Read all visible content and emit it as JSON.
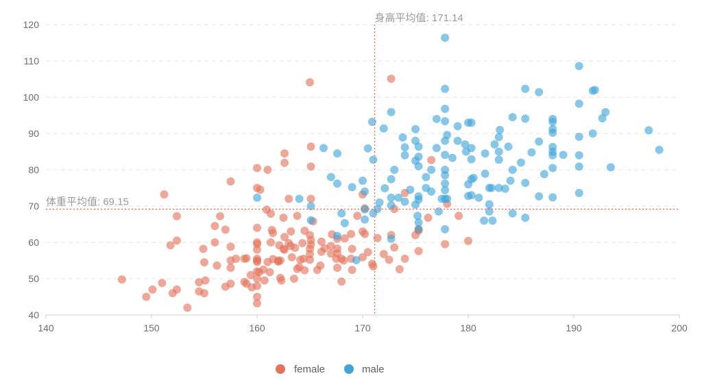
{
  "chart_data": {
    "type": "scatter",
    "xlim": [
      140,
      200
    ],
    "ylim": [
      40,
      120
    ],
    "x_ticks": [
      140,
      150,
      160,
      170,
      180,
      190,
      200
    ],
    "y_ticks": [
      40,
      50,
      60,
      70,
      80,
      90,
      100,
      110,
      120
    ],
    "grid": true,
    "legend_position": "bottom-center",
    "mark_lines": [
      {
        "axis": "x",
        "value": 171.14,
        "label": "身高平均值: 171.14"
      },
      {
        "axis": "y",
        "value": 69.15,
        "label": "体重平均值: 69.15"
      }
    ],
    "series": [
      {
        "name": "female",
        "color": "#e3735a",
        "points": [
          [
            147.2,
            49.8
          ],
          [
            149.5,
            45.0
          ],
          [
            150.1,
            47.0
          ],
          [
            151.0,
            48.8
          ],
          [
            151.2,
            73.2
          ],
          [
            151.8,
            59.2
          ],
          [
            152.0,
            46.0
          ],
          [
            152.4,
            60.5
          ],
          [
            152.4,
            67.2
          ],
          [
            152.4,
            47.0
          ],
          [
            153.4,
            42.0
          ],
          [
            154.5,
            46.5
          ],
          [
            154.5,
            49.0
          ],
          [
            154.9,
            58.2
          ],
          [
            155.0,
            46.0
          ],
          [
            155.0,
            54.5
          ],
          [
            155.1,
            49.5
          ],
          [
            156.0,
            60.0
          ],
          [
            156.0,
            64.5
          ],
          [
            156.2,
            53.6
          ],
          [
            156.5,
            67.2
          ],
          [
            157.0,
            47.8
          ],
          [
            157.0,
            63.5
          ],
          [
            157.5,
            55.0
          ],
          [
            157.5,
            76.8
          ],
          [
            157.5,
            48.6
          ],
          [
            157.5,
            53.0
          ],
          [
            157.5,
            58.8
          ],
          [
            158.0,
            55.5
          ],
          [
            158.8,
            49.1
          ],
          [
            158.8,
            55.5
          ],
          [
            159.0,
            48.6
          ],
          [
            159.0,
            55.6
          ],
          [
            159.4,
            51.0
          ],
          [
            159.5,
            47.6
          ],
          [
            160.0,
            55.0
          ],
          [
            160.0,
            50.0
          ],
          [
            160.0,
            43.2
          ],
          [
            160.0,
            45.0
          ],
          [
            160.0,
            55.5
          ],
          [
            160.0,
            59.5
          ],
          [
            160.0,
            64.0
          ],
          [
            160.0,
            75.0
          ],
          [
            160.0,
            80.5
          ],
          [
            160.0,
            52.0
          ],
          [
            160.0,
            58.0
          ],
          [
            160.0,
            48.0
          ],
          [
            160.0,
            60.0
          ],
          [
            160.0,
            54.6
          ],
          [
            160.2,
            51.8
          ],
          [
            160.3,
            74.5
          ],
          [
            160.6,
            52.5
          ],
          [
            160.7,
            49.5
          ],
          [
            160.9,
            69.0
          ],
          [
            161.0,
            54.6
          ],
          [
            161.0,
            80.0
          ],
          [
            161.2,
            51.8
          ],
          [
            161.3,
            67.9
          ],
          [
            161.3,
            60.0
          ],
          [
            161.4,
            63.4
          ],
          [
            161.5,
            62.6
          ],
          [
            161.5,
            55.4
          ],
          [
            162.0,
            54.7
          ],
          [
            162.0,
            55.0
          ],
          [
            162.1,
            59.2
          ],
          [
            162.2,
            50.2
          ],
          [
            162.2,
            55.0
          ],
          [
            162.3,
            49.5
          ],
          [
            162.5,
            58.2
          ],
          [
            162.6,
            81.9
          ],
          [
            162.6,
            84.5
          ],
          [
            162.6,
            61.5
          ],
          [
            162.6,
            58.0
          ],
          [
            163.0,
            59.8
          ],
          [
            163.0,
            72.0
          ],
          [
            163.2,
            59.0
          ],
          [
            163.3,
            55.9
          ],
          [
            163.5,
            50.0
          ],
          [
            163.6,
            58.5
          ],
          [
            163.8,
            52.7
          ],
          [
            163.8,
            67.3
          ],
          [
            164.0,
            53.2
          ],
          [
            164.1,
            55.2
          ],
          [
            164.3,
            59.8
          ],
          [
            164.4,
            55.5
          ],
          [
            164.5,
            63.2
          ],
          [
            164.5,
            52.3
          ],
          [
            165.0,
            55.2
          ],
          [
            165.0,
            58.2
          ],
          [
            165.0,
            62.0
          ],
          [
            165.0,
            104.1
          ],
          [
            165.0,
            56.8
          ],
          [
            165.1,
            60.6
          ],
          [
            165.1,
            59.4
          ],
          [
            165.1,
            72.0
          ],
          [
            165.1,
            86.4
          ],
          [
            165.1,
            80.9
          ],
          [
            165.7,
            52.4
          ],
          [
            166.0,
            53.6
          ],
          [
            166.1,
            57.4
          ],
          [
            166.4,
            58.4
          ],
          [
            167.0,
            56.9
          ],
          [
            167.0,
            59.0
          ],
          [
            167.1,
            62.2
          ],
          [
            167.5,
            55.5
          ],
          [
            167.6,
            61.0
          ],
          [
            167.6,
            57.0
          ],
          [
            167.6,
            53.0
          ],
          [
            167.6,
            58.3
          ],
          [
            168.0,
            49.2
          ],
          [
            168.0,
            55.5
          ],
          [
            168.2,
            55.0
          ],
          [
            168.9,
            62.3
          ],
          [
            168.9,
            55.5
          ],
          [
            169.0,
            52.4
          ],
          [
            169.0,
            58.2
          ],
          [
            169.5,
            67.3
          ],
          [
            170.0,
            55.9
          ],
          [
            170.0,
            63.0
          ],
          [
            170.0,
            73.2
          ],
          [
            170.2,
            62.3
          ],
          [
            170.2,
            69.4
          ],
          [
            170.5,
            57.3
          ],
          [
            170.9,
            54.1
          ],
          [
            171.0,
            53.4
          ],
          [
            171.4,
            61.2
          ],
          [
            172.0,
            56.8
          ],
          [
            172.5,
            55.2
          ],
          [
            172.7,
            62.0
          ],
          [
            172.7,
            105.1
          ],
          [
            173.0,
            58.6
          ],
          [
            173.0,
            69.2
          ],
          [
            173.5,
            52.6
          ],
          [
            174.0,
            55.5
          ],
          [
            174.0,
            73.6
          ],
          [
            175.0,
            62.0
          ],
          [
            175.3,
            57.6
          ],
          [
            175.3,
            63.6
          ],
          [
            175.3,
            63.2
          ],
          [
            176.2,
            66.8
          ],
          [
            176.5,
            82.7
          ],
          [
            177.8,
            59.5
          ],
          [
            178.0,
            70.6
          ],
          [
            180.0,
            60.4
          ],
          [
            179.1,
            67.3
          ],
          [
            166.1,
            60.2
          ],
          [
            165.3,
            65.8
          ],
          [
            163.2,
            63.0
          ],
          [
            162.5,
            66.8
          ],
          [
            168.3,
            61.1
          ]
        ]
      },
      {
        "name": "male",
        "color": "#3fa5d8",
        "points": [
          [
            160.0,
            72.3
          ],
          [
            164.0,
            72.0
          ],
          [
            165.1,
            70.0
          ],
          [
            165.1,
            66.1
          ],
          [
            166.3,
            86.0
          ],
          [
            167.0,
            78.0
          ],
          [
            167.6,
            84.5
          ],
          [
            167.6,
            76.2
          ],
          [
            167.6,
            61.8
          ],
          [
            168.0,
            68.0
          ],
          [
            168.3,
            65.3
          ],
          [
            169.0,
            75.2
          ],
          [
            169.4,
            55.1
          ],
          [
            170.0,
            77.0
          ],
          [
            170.2,
            69.1
          ],
          [
            170.2,
            74.0
          ],
          [
            170.2,
            66.3
          ],
          [
            170.5,
            85.9
          ],
          [
            170.9,
            93.2
          ],
          [
            171.0,
            82.8
          ],
          [
            171.4,
            69.2
          ],
          [
            171.6,
            71.0
          ],
          [
            172.0,
            91.4
          ],
          [
            172.7,
            72.3
          ],
          [
            172.7,
            77.4
          ],
          [
            172.7,
            95.9
          ],
          [
            172.7,
            70.2
          ],
          [
            172.7,
            61.0
          ],
          [
            173.0,
            80.0
          ],
          [
            173.4,
            72.3
          ],
          [
            173.8,
            88.9
          ],
          [
            174.0,
            71.2
          ],
          [
            174.0,
            86.2
          ],
          [
            174.5,
            74.5
          ],
          [
            175.0,
            70.4
          ],
          [
            175.0,
            91.2
          ],
          [
            175.0,
            88.0
          ],
          [
            175.2,
            67.3
          ],
          [
            175.3,
            83.6
          ],
          [
            175.3,
            71.8
          ],
          [
            175.3,
            72.7
          ],
          [
            175.3,
            65.5
          ],
          [
            175.3,
            63.6
          ],
          [
            175.3,
            86.4
          ],
          [
            175.3,
            81.0
          ],
          [
            176.0,
            78.0
          ],
          [
            176.5,
            80.0
          ],
          [
            176.5,
            74.0
          ],
          [
            177.0,
            94.0
          ],
          [
            177.0,
            86.0
          ],
          [
            177.2,
            68.5
          ],
          [
            177.5,
            72.0
          ],
          [
            177.8,
            84.1
          ],
          [
            177.8,
            102.3
          ],
          [
            177.8,
            72.0
          ],
          [
            177.8,
            74.4
          ],
          [
            177.8,
            80.0
          ],
          [
            177.8,
            96.8
          ],
          [
            177.8,
            88.0
          ],
          [
            177.8,
            63.6
          ],
          [
            177.8,
            93.4
          ],
          [
            177.8,
            116.4
          ],
          [
            177.8,
            76.2
          ],
          [
            177.8,
            78.5
          ],
          [
            178.0,
            72.0
          ],
          [
            178.0,
            89.6
          ],
          [
            178.5,
            83.3
          ],
          [
            179.0,
            92.0
          ],
          [
            179.0,
            88.0
          ],
          [
            179.7,
            87.0
          ],
          [
            179.8,
            85.0
          ],
          [
            180.0,
            93.0
          ],
          [
            180.0,
            76.0
          ],
          [
            180.0,
            72.8
          ],
          [
            180.3,
            93.0
          ],
          [
            180.3,
            82.9
          ],
          [
            180.3,
            77.4
          ],
          [
            180.3,
            73.0
          ],
          [
            180.3,
            86.0
          ],
          [
            180.5,
            77.8
          ],
          [
            181.0,
            72.3
          ],
          [
            181.5,
            66.0
          ],
          [
            181.6,
            84.5
          ],
          [
            181.6,
            78.9
          ],
          [
            182.0,
            75.0
          ],
          [
            182.0,
            70.5
          ],
          [
            182.0,
            68.5
          ],
          [
            182.2,
            75.0
          ],
          [
            182.3,
            66.0
          ],
          [
            182.5,
            87.0
          ],
          [
            182.9,
            82.8
          ],
          [
            182.9,
            89.0
          ],
          [
            182.9,
            85.0
          ],
          [
            182.9,
            75.0
          ],
          [
            183.0,
            91.0
          ],
          [
            183.5,
            74.8
          ],
          [
            183.8,
            86.4
          ],
          [
            184.0,
            77.0
          ],
          [
            184.2,
            94.5
          ],
          [
            184.2,
            80.0
          ],
          [
            184.2,
            68.0
          ],
          [
            185.0,
            82.0
          ],
          [
            185.4,
            102.3
          ],
          [
            185.4,
            76.4
          ],
          [
            185.4,
            94.1
          ],
          [
            185.4,
            66.8
          ],
          [
            186.0,
            84.8
          ],
          [
            186.7,
            101.4
          ],
          [
            186.7,
            72.7
          ],
          [
            186.7,
            87.8
          ],
          [
            187.2,
            78.8
          ],
          [
            188.0,
            94.0
          ],
          [
            188.0,
            80.5
          ],
          [
            188.0,
            72.4
          ],
          [
            188.0,
            90.2
          ],
          [
            188.0,
            84.0
          ],
          [
            188.0,
            91.2
          ],
          [
            188.0,
            85.0
          ],
          [
            188.0,
            86.3
          ],
          [
            188.0,
            93.2
          ],
          [
            189.0,
            84.1
          ],
          [
            190.5,
            73.6
          ],
          [
            190.5,
            89.1
          ],
          [
            190.5,
            98.2
          ],
          [
            190.5,
            108.6
          ],
          [
            190.5,
            80.9
          ],
          [
            190.5,
            84.0
          ],
          [
            191.8,
            90.0
          ],
          [
            191.8,
            101.8
          ],
          [
            192.0,
            102.0
          ],
          [
            192.7,
            94.2
          ],
          [
            193.0,
            95.9
          ],
          [
            193.5,
            80.7
          ],
          [
            197.1,
            90.9
          ],
          [
            198.1,
            85.5
          ],
          [
            175.0,
            82.5
          ],
          [
            176.0,
            75.0
          ],
          [
            174.0,
            84.0
          ],
          [
            172.1,
            74.9
          ],
          [
            171.0,
            68.0
          ]
        ]
      }
    ]
  }
}
